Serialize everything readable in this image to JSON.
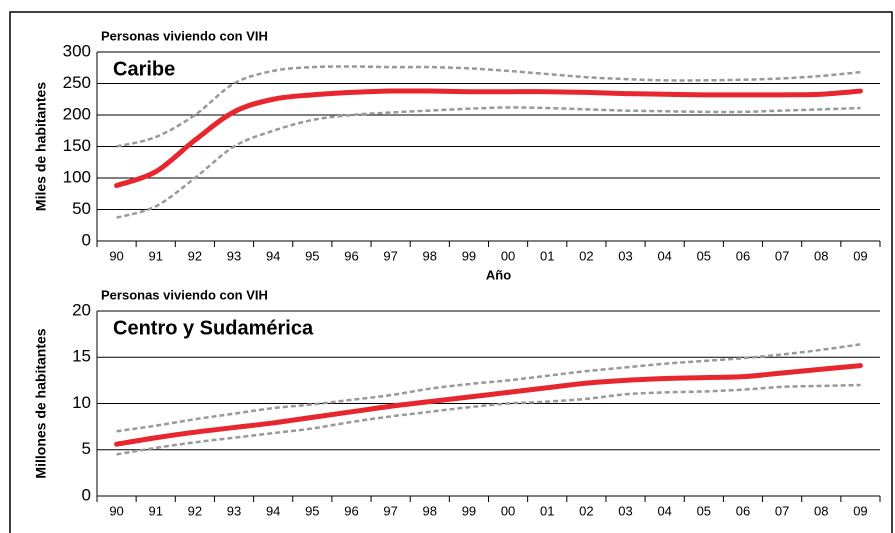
{
  "chart_data": [
    {
      "type": "line",
      "title": "Personas viviendo con VIH",
      "ylabel": "Miles de habitantes",
      "xlabel": "Año",
      "annotation": "Caribe",
      "categories": [
        "90",
        "91",
        "92",
        "93",
        "94",
        "95",
        "96",
        "97",
        "98",
        "99",
        "00",
        "01",
        "02",
        "03",
        "04",
        "05",
        "06",
        "07",
        "08",
        "09"
      ],
      "series": [
        {
          "color": "#999999",
          "dashed": true,
          "values": [
            150,
            165,
            200,
            250,
            270,
            276,
            277,
            276,
            276,
            274,
            270,
            265,
            260,
            257,
            255,
            255,
            256,
            258,
            262,
            268
          ]
        },
        {
          "color": "#999999",
          "dashed": true,
          "values": [
            37,
            55,
            100,
            150,
            175,
            192,
            200,
            204,
            207,
            210,
            212,
            211,
            209,
            207,
            206,
            205,
            205,
            207,
            209,
            211
          ]
        },
        {
          "color": "#e8262e",
          "dashed": false,
          "values": [
            88,
            110,
            160,
            205,
            225,
            232,
            236,
            238,
            238,
            237,
            237,
            237,
            236,
            234,
            233,
            232,
            232,
            232,
            233,
            238
          ]
        }
      ],
      "ylim": [
        0,
        300
      ],
      "yticks": [
        0,
        50,
        100,
        150,
        200,
        250,
        300
      ],
      "grid": true
    },
    {
      "type": "line",
      "title": "Personas viviendo con VIH",
      "ylabel": "Millones de habitantes",
      "annotation": "Centro y Sudamérica",
      "categories": [
        "90",
        "91",
        "92",
        "93",
        "94",
        "95",
        "96",
        "97",
        "98",
        "99",
        "00",
        "01",
        "02",
        "03",
        "04",
        "05",
        "06",
        "07",
        "08",
        "09"
      ],
      "series": [
        {
          "color": "#999999",
          "dashed": true,
          "values": [
            7.0,
            7.6,
            8.3,
            8.9,
            9.5,
            9.9,
            10.4,
            10.9,
            11.6,
            12.1,
            12.5,
            13.0,
            13.5,
            13.9,
            14.3,
            14.6,
            14.9,
            15.3,
            15.8,
            16.4
          ]
        },
        {
          "color": "#999999",
          "dashed": true,
          "values": [
            4.5,
            5.2,
            5.8,
            6.3,
            6.8,
            7.3,
            8.0,
            8.6,
            9.1,
            9.6,
            10.0,
            10.2,
            10.5,
            11.0,
            11.2,
            11.3,
            11.5,
            11.8,
            11.9,
            12.0
          ]
        },
        {
          "color": "#e8262e",
          "dashed": false,
          "values": [
            5.6,
            6.3,
            6.9,
            7.4,
            7.9,
            8.5,
            9.1,
            9.7,
            10.2,
            10.7,
            11.2,
            11.7,
            12.2,
            12.5,
            12.7,
            12.8,
            12.9,
            13.3,
            13.7,
            14.1
          ]
        }
      ],
      "ylim": [
        0,
        20
      ],
      "yticks": [
        0,
        5,
        10,
        15,
        20
      ],
      "grid": true
    }
  ]
}
